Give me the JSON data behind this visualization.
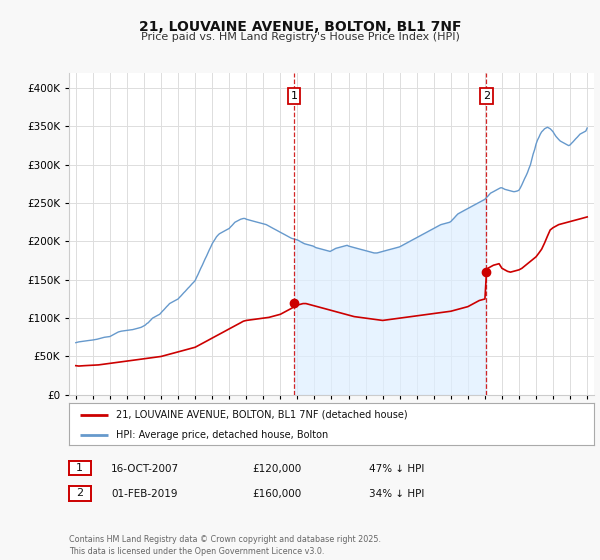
{
  "title": "21, LOUVAINE AVENUE, BOLTON, BL1 7NF",
  "subtitle": "Price paid vs. HM Land Registry's House Price Index (HPI)",
  "legend_line1": "21, LOUVAINE AVENUE, BOLTON, BL1 7NF (detached house)",
  "legend_line2": "HPI: Average price, detached house, Bolton",
  "footer": "Contains HM Land Registry data © Crown copyright and database right 2025.\nThis data is licensed under the Open Government Licence v3.0.",
  "red_color": "#cc0000",
  "blue_color": "#6699cc",
  "blue_fill_color": "#ddeeff",
  "annotation1": {
    "label": "1",
    "date": "16-OCT-2007",
    "price": "£120,000",
    "pct": "47% ↓ HPI"
  },
  "annotation2": {
    "label": "2",
    "date": "01-FEB-2019",
    "price": "£160,000",
    "pct": "34% ↓ HPI"
  },
  "ylim": [
    0,
    420000
  ],
  "xlim_start": 1994.6,
  "xlim_end": 2025.4,
  "background_color": "#f8f8f8",
  "plot_bg_color": "#ffffff",
  "grid_color": "#dddddd",
  "vline1_x": 2007.8,
  "vline2_x": 2019.08,
  "marker1_x": 2007.8,
  "marker1_y": 120000,
  "marker2_x": 2019.08,
  "marker2_y": 160000,
  "hpi_x": [
    1995.0,
    1995.08,
    1995.17,
    1995.25,
    1995.33,
    1995.42,
    1995.5,
    1995.58,
    1995.67,
    1995.75,
    1995.83,
    1995.92,
    1996.0,
    1996.08,
    1996.17,
    1996.25,
    1996.33,
    1996.42,
    1996.5,
    1996.58,
    1996.67,
    1996.75,
    1996.83,
    1996.92,
    1997.0,
    1997.08,
    1997.17,
    1997.25,
    1997.33,
    1997.42,
    1997.5,
    1997.58,
    1997.67,
    1997.75,
    1997.83,
    1997.92,
    1998.0,
    1998.08,
    1998.17,
    1998.25,
    1998.33,
    1998.42,
    1998.5,
    1998.58,
    1998.67,
    1998.75,
    1998.83,
    1998.92,
    1999.0,
    1999.08,
    1999.17,
    1999.25,
    1999.33,
    1999.42,
    1999.5,
    1999.58,
    1999.67,
    1999.75,
    1999.83,
    1999.92,
    2000.0,
    2000.08,
    2000.17,
    2000.25,
    2000.33,
    2000.42,
    2000.5,
    2000.58,
    2000.67,
    2000.75,
    2000.83,
    2000.92,
    2001.0,
    2001.08,
    2001.17,
    2001.25,
    2001.33,
    2001.42,
    2001.5,
    2001.58,
    2001.67,
    2001.75,
    2001.83,
    2001.92,
    2002.0,
    2002.08,
    2002.17,
    2002.25,
    2002.33,
    2002.42,
    2002.5,
    2002.58,
    2002.67,
    2002.75,
    2002.83,
    2002.92,
    2003.0,
    2003.08,
    2003.17,
    2003.25,
    2003.33,
    2003.42,
    2003.5,
    2003.58,
    2003.67,
    2003.75,
    2003.83,
    2003.92,
    2004.0,
    2004.08,
    2004.17,
    2004.25,
    2004.33,
    2004.42,
    2004.5,
    2004.58,
    2004.67,
    2004.75,
    2004.83,
    2004.92,
    2005.0,
    2005.08,
    2005.17,
    2005.25,
    2005.33,
    2005.42,
    2005.5,
    2005.58,
    2005.67,
    2005.75,
    2005.83,
    2005.92,
    2006.0,
    2006.08,
    2006.17,
    2006.25,
    2006.33,
    2006.42,
    2006.5,
    2006.58,
    2006.67,
    2006.75,
    2006.83,
    2006.92,
    2007.0,
    2007.08,
    2007.17,
    2007.25,
    2007.33,
    2007.42,
    2007.5,
    2007.58,
    2007.67,
    2007.75,
    2007.83,
    2007.92,
    2008.0,
    2008.08,
    2008.17,
    2008.25,
    2008.33,
    2008.42,
    2008.5,
    2008.58,
    2008.67,
    2008.75,
    2008.83,
    2008.92,
    2009.0,
    2009.08,
    2009.17,
    2009.25,
    2009.33,
    2009.42,
    2009.5,
    2009.58,
    2009.67,
    2009.75,
    2009.83,
    2009.92,
    2010.0,
    2010.08,
    2010.17,
    2010.25,
    2010.33,
    2010.42,
    2010.5,
    2010.58,
    2010.67,
    2010.75,
    2010.83,
    2010.92,
    2011.0,
    2011.08,
    2011.17,
    2011.25,
    2011.33,
    2011.42,
    2011.5,
    2011.58,
    2011.67,
    2011.75,
    2011.83,
    2011.92,
    2012.0,
    2012.08,
    2012.17,
    2012.25,
    2012.33,
    2012.42,
    2012.5,
    2012.58,
    2012.67,
    2012.75,
    2012.83,
    2012.92,
    2013.0,
    2013.08,
    2013.17,
    2013.25,
    2013.33,
    2013.42,
    2013.5,
    2013.58,
    2013.67,
    2013.75,
    2013.83,
    2013.92,
    2014.0,
    2014.08,
    2014.17,
    2014.25,
    2014.33,
    2014.42,
    2014.5,
    2014.58,
    2014.67,
    2014.75,
    2014.83,
    2014.92,
    2015.0,
    2015.08,
    2015.17,
    2015.25,
    2015.33,
    2015.42,
    2015.5,
    2015.58,
    2015.67,
    2015.75,
    2015.83,
    2015.92,
    2016.0,
    2016.08,
    2016.17,
    2016.25,
    2016.33,
    2016.42,
    2016.5,
    2016.58,
    2016.67,
    2016.75,
    2016.83,
    2016.92,
    2017.0,
    2017.08,
    2017.17,
    2017.25,
    2017.33,
    2017.42,
    2017.5,
    2017.58,
    2017.67,
    2017.75,
    2017.83,
    2017.92,
    2018.0,
    2018.08,
    2018.17,
    2018.25,
    2018.33,
    2018.42,
    2018.5,
    2018.58,
    2018.67,
    2018.75,
    2018.83,
    2018.92,
    2019.0,
    2019.08,
    2019.17,
    2019.25,
    2019.33,
    2019.42,
    2019.5,
    2019.58,
    2019.67,
    2019.75,
    2019.83,
    2019.92,
    2020.0,
    2020.08,
    2020.17,
    2020.25,
    2020.33,
    2020.42,
    2020.5,
    2020.58,
    2020.67,
    2020.75,
    2020.83,
    2020.92,
    2021.0,
    2021.08,
    2021.17,
    2021.25,
    2021.33,
    2021.42,
    2021.5,
    2021.58,
    2021.67,
    2021.75,
    2021.83,
    2021.92,
    2022.0,
    2022.08,
    2022.17,
    2022.25,
    2022.33,
    2022.42,
    2022.5,
    2022.58,
    2022.67,
    2022.75,
    2022.83,
    2022.92,
    2023.0,
    2023.08,
    2023.17,
    2023.25,
    2023.33,
    2023.42,
    2023.5,
    2023.58,
    2023.67,
    2023.75,
    2023.83,
    2023.92,
    2024.0,
    2024.08,
    2024.17,
    2024.25,
    2024.33,
    2024.42,
    2024.5,
    2024.58,
    2024.67,
    2024.75,
    2024.83,
    2024.92,
    2025.0
  ],
  "hpi_y": [
    68000,
    68500,
    69000,
    69200,
    69500,
    69800,
    70000,
    70200,
    70500,
    70800,
    71000,
    71200,
    71500,
    71800,
    72000,
    72500,
    73000,
    73500,
    74000,
    74500,
    75000,
    75200,
    75500,
    75800,
    76000,
    77000,
    78000,
    79000,
    80000,
    81000,
    82000,
    82500,
    83000,
    83200,
    83500,
    83800,
    84000,
    84200,
    84500,
    84800,
    85000,
    85500,
    86000,
    86500,
    87000,
    87500,
    88000,
    89000,
    90000,
    91000,
    93000,
    94000,
    96000,
    98000,
    100000,
    101000,
    102000,
    103000,
    104000,
    105000,
    107000,
    109000,
    111000,
    113000,
    115000,
    117000,
    119000,
    120000,
    121000,
    122000,
    123000,
    124000,
    125000,
    127000,
    129000,
    131000,
    133000,
    135000,
    137000,
    139000,
    141000,
    143000,
    145000,
    147000,
    149000,
    153000,
    157000,
    161000,
    165000,
    169000,
    173000,
    177000,
    181000,
    185000,
    189000,
    193000,
    197000,
    200000,
    203000,
    206000,
    208000,
    210000,
    211000,
    212000,
    213000,
    214000,
    215000,
    216000,
    217000,
    219000,
    221000,
    223000,
    225000,
    226000,
    227000,
    228000,
    229000,
    229500,
    230000,
    230000,
    229000,
    228500,
    228000,
    227500,
    227000,
    226500,
    226000,
    225500,
    225000,
    224500,
    224000,
    223500,
    223000,
    222500,
    222000,
    221000,
    220000,
    219000,
    218000,
    217000,
    216000,
    215000,
    214000,
    213000,
    212000,
    211000,
    210000,
    209000,
    208000,
    207000,
    206000,
    205000,
    204000,
    203500,
    203000,
    202500,
    202000,
    201000,
    200000,
    199000,
    198000,
    197000,
    196500,
    196000,
    195500,
    195000,
    194500,
    194000,
    193000,
    192000,
    191500,
    191000,
    190500,
    190000,
    189500,
    189000,
    188500,
    188000,
    187500,
    187000,
    188000,
    189000,
    190000,
    191000,
    191500,
    192000,
    192500,
    193000,
    193500,
    194000,
    194500,
    195000,
    194000,
    193500,
    193000,
    192500,
    192000,
    191500,
    191000,
    190500,
    190000,
    189500,
    189000,
    188500,
    188000,
    187500,
    187000,
    186500,
    186000,
    185500,
    185000,
    185000,
    185000,
    185500,
    186000,
    186500,
    187000,
    187500,
    188000,
    188500,
    189000,
    189500,
    190000,
    190500,
    191000,
    191500,
    192000,
    192500,
    193000,
    194000,
    195000,
    196000,
    197000,
    198000,
    199000,
    200000,
    201000,
    202000,
    203000,
    204000,
    205000,
    206000,
    207000,
    208000,
    209000,
    210000,
    211000,
    212000,
    213000,
    214000,
    215000,
    216000,
    217000,
    218000,
    219000,
    220000,
    221000,
    222000,
    222500,
    223000,
    223500,
    224000,
    224500,
    225000,
    226000,
    228000,
    230000,
    232000,
    234000,
    236000,
    237000,
    238000,
    239000,
    240000,
    241000,
    242000,
    243000,
    244000,
    245000,
    246000,
    247000,
    248000,
    249000,
    250000,
    251000,
    252000,
    253000,
    254000,
    255000,
    257000,
    259000,
    261000,
    263000,
    264000,
    265000,
    266000,
    267000,
    268000,
    269000,
    270000,
    270000,
    269000,
    268000,
    267500,
    267000,
    266500,
    266000,
    265500,
    265000,
    265000,
    265500,
    266000,
    267000,
    270000,
    274000,
    278000,
    282000,
    286000,
    290000,
    295000,
    300000,
    307000,
    314000,
    320000,
    327000,
    332000,
    336000,
    340000,
    343000,
    345000,
    347000,
    348000,
    349000,
    348000,
    347000,
    345000,
    343000,
    340000,
    337000,
    335000,
    333000,
    331000,
    330000,
    329000,
    328000,
    327000,
    326000,
    325000,
    326000,
    328000,
    330000,
    332000,
    334000,
    336000,
    338000,
    340000,
    341000,
    342000,
    343000,
    344000,
    348000
  ],
  "red_x": [
    1995.0,
    1995.17,
    1995.33,
    1995.5,
    1995.67,
    1995.83,
    1996.0,
    1996.17,
    1996.33,
    1996.5,
    1996.67,
    1996.83,
    1997.0,
    1997.17,
    1997.33,
    1997.5,
    1997.67,
    1997.83,
    1998.0,
    1998.17,
    1998.33,
    1998.5,
    1998.67,
    1998.83,
    1999.0,
    1999.17,
    1999.33,
    1999.5,
    1999.67,
    1999.83,
    2000.0,
    2000.17,
    2000.33,
    2000.5,
    2000.67,
    2000.83,
    2001.0,
    2001.17,
    2001.33,
    2001.5,
    2001.67,
    2001.83,
    2002.0,
    2002.17,
    2002.33,
    2002.5,
    2002.67,
    2002.83,
    2003.0,
    2003.17,
    2003.33,
    2003.5,
    2003.67,
    2003.83,
    2004.0,
    2004.17,
    2004.33,
    2004.5,
    2004.67,
    2004.83,
    2005.0,
    2005.17,
    2005.33,
    2005.5,
    2005.67,
    2005.83,
    2006.0,
    2006.17,
    2006.33,
    2006.5,
    2006.67,
    2006.83,
    2007.0,
    2007.17,
    2007.33,
    2007.5,
    2007.67,
    2007.83,
    2008.0,
    2008.17,
    2008.33,
    2008.5,
    2008.67,
    2008.83,
    2009.0,
    2009.17,
    2009.33,
    2009.5,
    2009.67,
    2009.83,
    2010.0,
    2010.17,
    2010.33,
    2010.5,
    2010.67,
    2010.83,
    2011.0,
    2011.17,
    2011.33,
    2011.5,
    2011.67,
    2011.83,
    2012.0,
    2012.17,
    2012.33,
    2012.5,
    2012.67,
    2012.83,
    2013.0,
    2013.17,
    2013.33,
    2013.5,
    2013.67,
    2013.83,
    2014.0,
    2014.17,
    2014.33,
    2014.5,
    2014.67,
    2014.83,
    2015.0,
    2015.17,
    2015.33,
    2015.5,
    2015.67,
    2015.83,
    2016.0,
    2016.17,
    2016.33,
    2016.5,
    2016.67,
    2016.83,
    2017.0,
    2017.17,
    2017.33,
    2017.5,
    2017.67,
    2017.83,
    2018.0,
    2018.17,
    2018.33,
    2018.5,
    2018.67,
    2018.83,
    2019.0,
    2019.08,
    2019.17,
    2019.33,
    2019.5,
    2019.67,
    2019.83,
    2020.0,
    2020.17,
    2020.33,
    2020.5,
    2020.67,
    2020.83,
    2021.0,
    2021.17,
    2021.33,
    2021.5,
    2021.67,
    2021.83,
    2022.0,
    2022.17,
    2022.33,
    2022.5,
    2022.67,
    2022.83,
    2023.0,
    2023.17,
    2023.33,
    2023.5,
    2023.67,
    2023.83,
    2024.0,
    2024.17,
    2024.33,
    2024.5,
    2024.67,
    2024.83,
    2025.0
  ],
  "red_y": [
    38000,
    37500,
    37800,
    38000,
    38200,
    38500,
    38500,
    38800,
    39000,
    39500,
    40000,
    40500,
    41000,
    41500,
    42000,
    42500,
    43000,
    43500,
    44000,
    44500,
    45000,
    45500,
    46000,
    46500,
    47000,
    47500,
    48000,
    48500,
    49000,
    49500,
    50000,
    51000,
    52000,
    53000,
    54000,
    55000,
    56000,
    57000,
    58000,
    59000,
    60000,
    61000,
    62000,
    64000,
    66000,
    68000,
    70000,
    72000,
    74000,
    76000,
    78000,
    80000,
    82000,
    84000,
    86000,
    88000,
    90000,
    92000,
    94000,
    96000,
    97000,
    97500,
    98000,
    98500,
    99000,
    99500,
    100000,
    100500,
    101000,
    102000,
    103000,
    104000,
    105000,
    107000,
    109000,
    111000,
    113000,
    115000,
    117000,
    118000,
    119000,
    119000,
    118000,
    117000,
    116000,
    115000,
    114000,
    113000,
    112000,
    111000,
    110000,
    109000,
    108000,
    107000,
    106000,
    105000,
    104000,
    103000,
    102000,
    101500,
    101000,
    100500,
    100000,
    99500,
    99000,
    98500,
    98000,
    97500,
    97000,
    97500,
    98000,
    98500,
    99000,
    99500,
    100000,
    100500,
    101000,
    101500,
    102000,
    102500,
    103000,
    103500,
    104000,
    104500,
    105000,
    105500,
    106000,
    106500,
    107000,
    107500,
    108000,
    108500,
    109000,
    110000,
    111000,
    112000,
    113000,
    114000,
    115000,
    117000,
    119000,
    121000,
    123000,
    124000,
    125000,
    155000,
    165000,
    167000,
    169000,
    170000,
    171000,
    165000,
    163000,
    161000,
    160000,
    161000,
    162000,
    163000,
    165000,
    168000,
    171000,
    174000,
    177000,
    180000,
    185000,
    190000,
    198000,
    207000,
    215000,
    218000,
    220000,
    222000,
    223000,
    224000,
    225000,
    226000,
    227000,
    228000,
    229000,
    230000,
    231000,
    232000
  ]
}
